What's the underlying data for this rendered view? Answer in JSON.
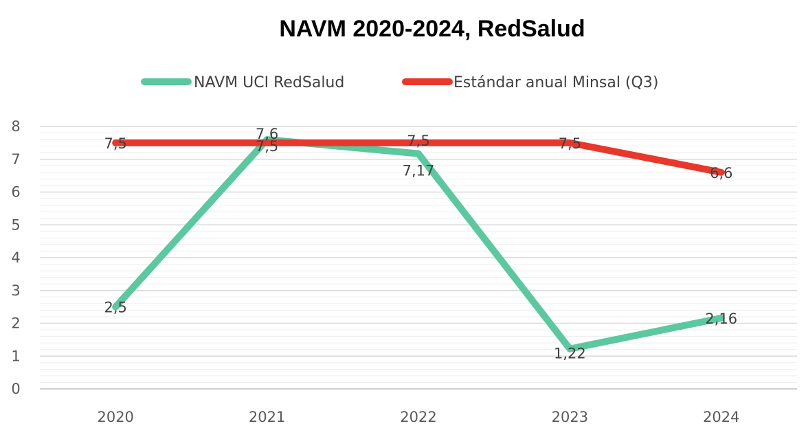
{
  "chart_data": {
    "type": "line",
    "title": "NAVM 2020-2024, RedSalud",
    "xlabel": "",
    "ylabel": "",
    "categories": [
      "2020",
      "2021",
      "2022",
      "2023",
      "2024"
    ],
    "ylim": [
      0,
      8
    ],
    "yticks": [
      "0",
      "1",
      "2",
      "3",
      "4",
      "5",
      "6",
      "7",
      "8"
    ],
    "grid": true,
    "legend_position": "top",
    "series": [
      {
        "name": "NAVM UCI RedSalud",
        "color": "#5BC8A0",
        "values": [
          2.5,
          7.6,
          7.17,
          1.22,
          2.16
        ],
        "labels": [
          "2,5",
          "7,6",
          "7,17",
          "1,22",
          "2,16"
        ]
      },
      {
        "name": "Estándar anual Minsal (Q3)",
        "color": "#E8382B",
        "values": [
          7.5,
          7.5,
          7.5,
          7.5,
          6.6
        ],
        "labels": [
          "7,5",
          "7,5",
          "7,5",
          "7,5",
          "6,6"
        ]
      }
    ]
  }
}
